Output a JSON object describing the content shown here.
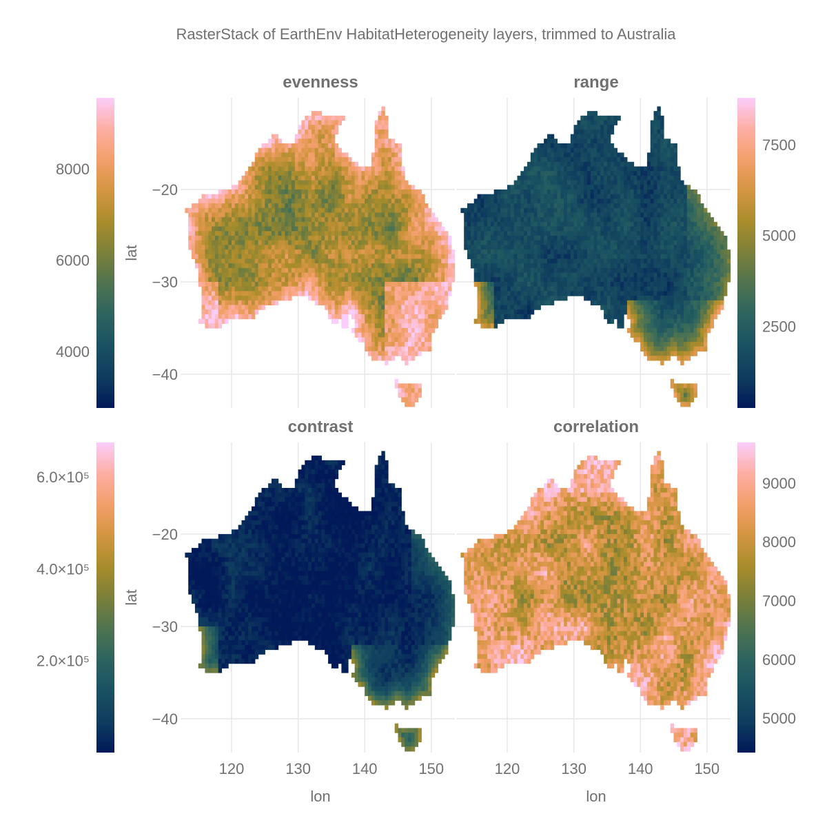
{
  "chart_data": {
    "type": "heatmap",
    "title": "RasterStack of EarthEnv HabitatHeterogeneity layers, trimmed to Australia",
    "colormap": "batlow",
    "colormap_stops": [
      "#011959",
      "#0f3d5e",
      "#1a5161",
      "#2c6460",
      "#4f7350",
      "#7b803a",
      "#a88c2b",
      "#d39540",
      "#f29f6a",
      "#fdaea3",
      "#facdfa"
    ],
    "xlabel": "lon",
    "ylabel": "lat",
    "xlim": [
      113.2,
      153.6
    ],
    "ylim": [
      -43.6,
      -10.1
    ],
    "xticks": [
      120,
      130,
      140,
      150
    ],
    "xtick_labels": [
      "120",
      "130",
      "140",
      "150"
    ],
    "yticks": [
      -20,
      -30,
      -40
    ],
    "ytick_labels": [
      "−20",
      "−30",
      "−40"
    ],
    "grid": true,
    "panels": [
      {
        "name": "evenness",
        "colorbar_side": "left",
        "clim": [
          2760,
          9560
        ],
        "cbar_ticks": [
          4000,
          6000,
          8000
        ],
        "cbar_tick_labels": [
          "4000",
          "6000",
          "8000"
        ],
        "coast_value": 9000,
        "interior_value": 6300,
        "noise": 900,
        "seed": 1
      },
      {
        "name": "range",
        "colorbar_side": "right",
        "clim": [
          250,
          8790
        ],
        "cbar_ticks": [
          2500,
          5000,
          7500
        ],
        "cbar_tick_labels": [
          "2500",
          "5000",
          "7500"
        ],
        "coast_value": 7000,
        "interior_value": 1500,
        "noise": 700,
        "seed": 2
      },
      {
        "name": "contrast",
        "colorbar_side": "left",
        "clim": [
          0,
          675000
        ],
        "cbar_ticks": [
          200000,
          400000,
          600000
        ],
        "cbar_tick_labels": [
          "2.0×10⁵",
          "4.0×10⁵",
          "6.0×10⁵"
        ],
        "coast_value": 380000,
        "interior_value": 15000,
        "noise": 40000,
        "seed": 3
      },
      {
        "name": "correlation",
        "colorbar_side": "right",
        "clim": [
          4415,
          9690
        ],
        "cbar_ticks": [
          5000,
          6000,
          7000,
          8000,
          9000
        ],
        "cbar_tick_labels": [
          "5000",
          "6000",
          "7000",
          "8000",
          "9000"
        ],
        "coast_value": 8600,
        "interior_value": 7600,
        "noise": 900,
        "seed": 4
      }
    ]
  }
}
